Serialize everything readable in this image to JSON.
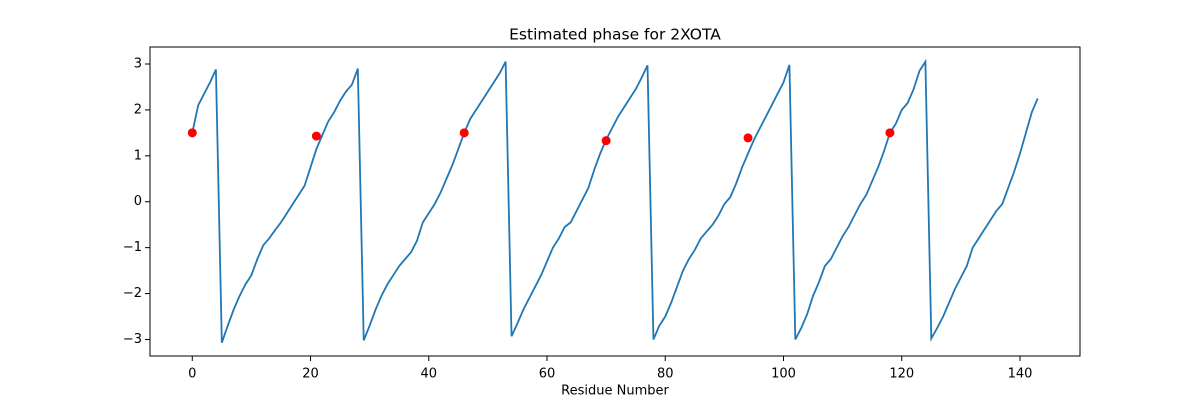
{
  "chart_data": {
    "type": "line",
    "title": "Estimated phase for 2XOTA",
    "xlabel": "Residue Number",
    "x": [
      0,
      1,
      2,
      3,
      4,
      5,
      6,
      7,
      8,
      9,
      10,
      11,
      12,
      13,
      14,
      15,
      16,
      17,
      18,
      19,
      20,
      21,
      22,
      23,
      24,
      25,
      26,
      27,
      28,
      29,
      30,
      31,
      32,
      33,
      34,
      35,
      36,
      37,
      38,
      39,
      40,
      41,
      42,
      43,
      44,
      45,
      46,
      47,
      48,
      49,
      50,
      51,
      52,
      53,
      54,
      55,
      56,
      57,
      58,
      59,
      60,
      61,
      62,
      63,
      64,
      65,
      66,
      67,
      68,
      69,
      70,
      71,
      72,
      73,
      74,
      75,
      76,
      77,
      78,
      79,
      80,
      81,
      82,
      83,
      84,
      85,
      86,
      87,
      88,
      89,
      90,
      91,
      92,
      93,
      94,
      95,
      96,
      97,
      98,
      99,
      100,
      101,
      102,
      103,
      104,
      105,
      106,
      107,
      108,
      109,
      110,
      111,
      112,
      113,
      114,
      115,
      116,
      117,
      118,
      119,
      120,
      121,
      122,
      123,
      124,
      125,
      126,
      127,
      128,
      129,
      130,
      131,
      132,
      133,
      134,
      135,
      136,
      137,
      138,
      139,
      140,
      141,
      142,
      143
    ],
    "series": [
      {
        "color": "#1f77b4",
        "values": [
          1.5,
          2.1,
          2.35,
          2.6,
          2.88,
          -3.07,
          -2.7,
          -2.35,
          -2.05,
          -1.8,
          -1.6,
          -1.25,
          -0.95,
          -0.8,
          -0.62,
          -0.45,
          -0.25,
          -0.05,
          0.15,
          0.35,
          0.75,
          1.15,
          1.45,
          1.75,
          1.95,
          2.2,
          2.4,
          2.55,
          2.9,
          -3.02,
          -2.7,
          -2.35,
          -2.05,
          -1.8,
          -1.6,
          -1.4,
          -1.25,
          -1.1,
          -0.85,
          -0.45,
          -0.25,
          -0.05,
          0.2,
          0.5,
          0.8,
          1.15,
          1.5,
          1.8,
          2.0,
          2.2,
          2.4,
          2.6,
          2.8,
          3.05,
          -2.93,
          -2.65,
          -2.35,
          -2.1,
          -1.85,
          -1.6,
          -1.3,
          -1.0,
          -0.8,
          -0.55,
          -0.45,
          -0.2,
          0.05,
          0.3,
          0.7,
          1.05,
          1.35,
          1.6,
          1.85,
          2.05,
          2.25,
          2.45,
          2.7,
          2.97,
          -3.0,
          -2.7,
          -2.5,
          -2.2,
          -1.85,
          -1.5,
          -1.25,
          -1.05,
          -0.8,
          -0.65,
          -0.5,
          -0.3,
          -0.05,
          0.1,
          0.4,
          0.75,
          1.05,
          1.35,
          1.6,
          1.85,
          2.1,
          2.35,
          2.6,
          2.98,
          -3.0,
          -2.75,
          -2.45,
          -2.05,
          -1.75,
          -1.4,
          -1.25,
          -1.0,
          -0.75,
          -0.55,
          -0.3,
          -0.05,
          0.15,
          0.45,
          0.75,
          1.1,
          1.5,
          1.7,
          2.0,
          2.15,
          2.45,
          2.85,
          3.05,
          -2.98,
          -2.75,
          -2.5,
          -2.2,
          -1.9,
          -1.65,
          -1.4,
          -1.0,
          -0.8,
          -0.6,
          -0.4,
          -0.2,
          -0.05,
          0.3,
          0.65,
          1.05,
          1.5,
          1.95,
          2.25
        ]
      }
    ],
    "points": {
      "color": "#ff0000",
      "x": [
        0,
        21,
        46,
        70,
        94,
        118
      ],
      "values": [
        1.5,
        1.43,
        1.5,
        1.33,
        1.39,
        1.5
      ]
    },
    "xlim": [
      -7.15,
      150.15
    ],
    "ylim": [
      -3.36,
      3.37
    ],
    "xticks": [
      0,
      20,
      40,
      60,
      80,
      100,
      120,
      140
    ],
    "yticks": [
      {
        "value": -3,
        "label": "−3"
      },
      {
        "value": -2,
        "label": "−2"
      },
      {
        "value": -1,
        "label": "−1"
      },
      0,
      1,
      2,
      3
    ]
  }
}
